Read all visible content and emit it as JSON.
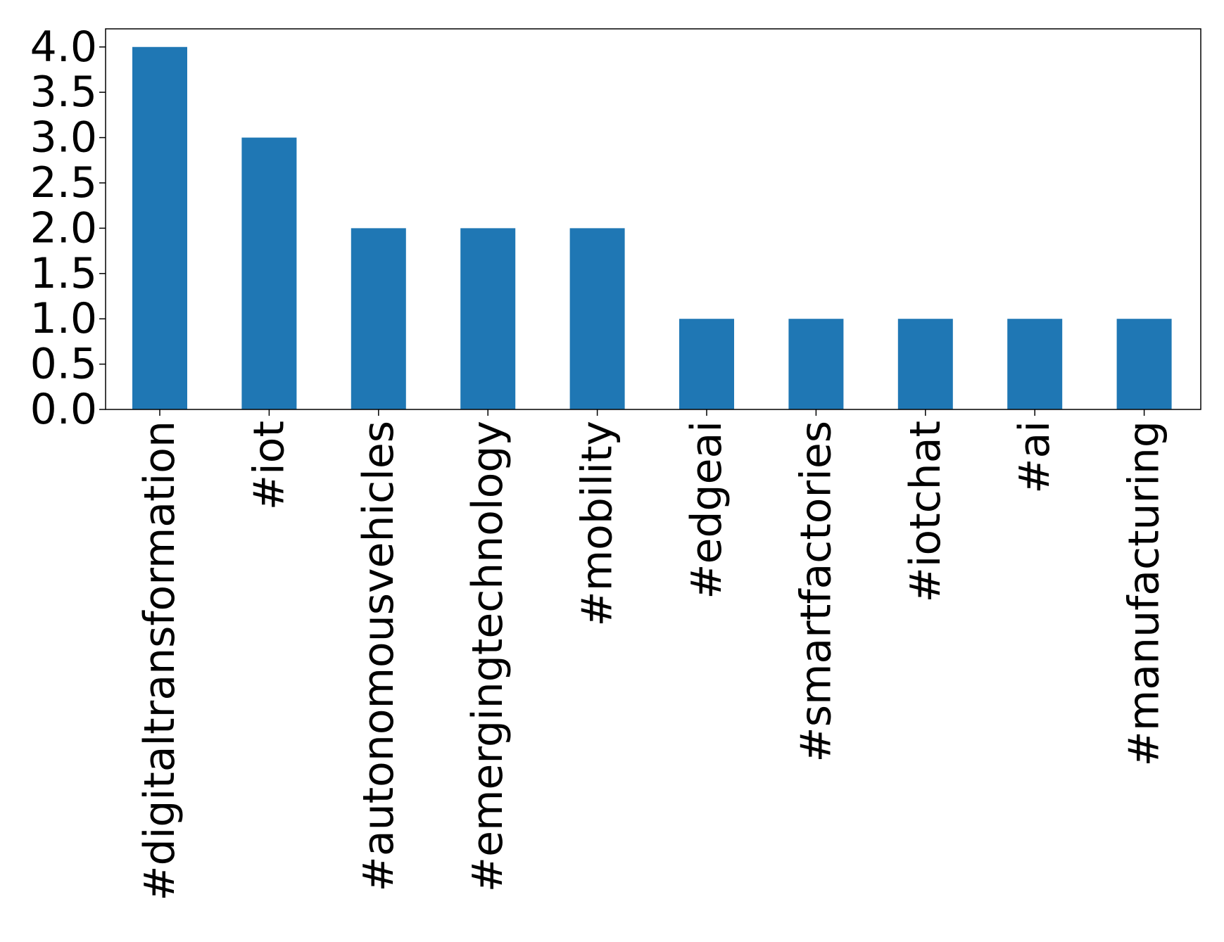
{
  "chart_data": {
    "type": "bar",
    "categories": [
      "#digitaltransformation",
      "#iot",
      "#autonomousvehicles",
      "#emergingtechnology",
      "#mobility",
      "#edgeai",
      "#smartfactories",
      "#iotchat",
      "#ai",
      "#manufacturing"
    ],
    "values": [
      4,
      3,
      2,
      2,
      2,
      1,
      1,
      1,
      1,
      1
    ],
    "yticks": [
      "0.0",
      "0.5",
      "1.0",
      "1.5",
      "2.0",
      "2.5",
      "3.0",
      "3.5",
      "4.0"
    ],
    "ylim": [
      0,
      4.2
    ],
    "title": "",
    "xlabel": "",
    "ylabel": "",
    "bar_color": "#1f77b4",
    "grid": false,
    "legend": "none"
  }
}
